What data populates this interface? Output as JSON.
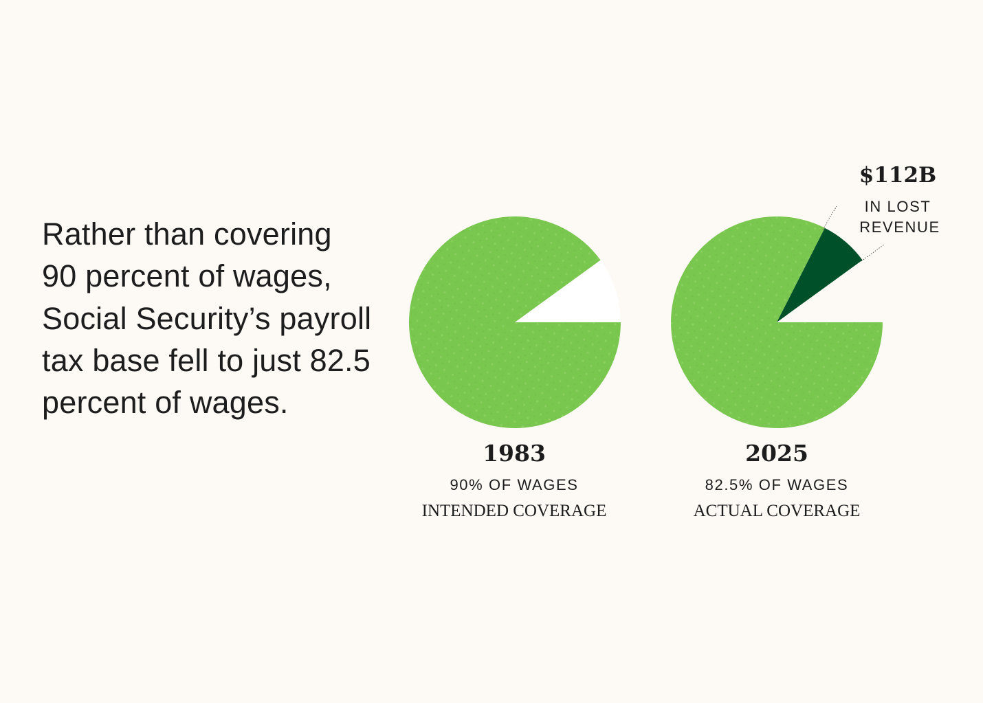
{
  "headline": "Rather than covering 90 percent of wages, Social Security’s payroll tax base fell to just 82.5 percent of wages.",
  "colors": {
    "background": "#fdf9f4",
    "covered": "#7ac74f",
    "lost": "#00512a",
    "uncovered": "#ffffff",
    "text": "#1c1c1c"
  },
  "chart_data": {
    "type": "pie",
    "charts": [
      {
        "year": "1983",
        "values": [
          90,
          10
        ],
        "categories": [
          "covered",
          "uncovered"
        ],
        "share_label": "90% OF WAGES",
        "coverage_label": "INTENDED COVERAGE"
      },
      {
        "year": "2025",
        "values": [
          82.5,
          7.5,
          10
        ],
        "categories": [
          "covered",
          "lost",
          "uncovered"
        ],
        "share_label": "82.5% OF WAGES",
        "coverage_label": "ACTUAL COVERAGE"
      }
    ],
    "annotation": {
      "value": "$112B",
      "line1": "IN LOST",
      "line2": "REVENUE"
    }
  }
}
